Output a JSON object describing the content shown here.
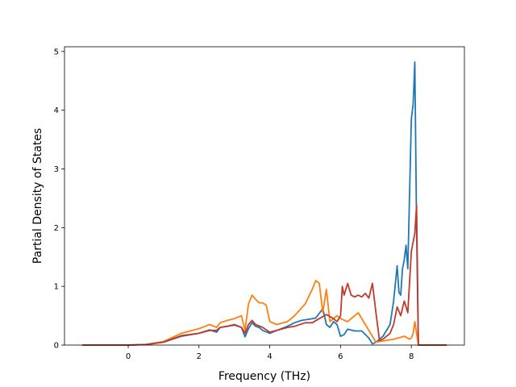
{
  "chart_data": {
    "type": "line",
    "title": "",
    "xlabel": "Frequency (THz)",
    "ylabel": "Partial Density of States",
    "xlim": [
      -1.8,
      9.5
    ],
    "ylim": [
      0,
      5.08
    ],
    "xticks": [
      0,
      2,
      4,
      6,
      8
    ],
    "yticks": [
      0,
      1,
      2,
      3,
      4,
      5
    ],
    "grid": false,
    "legend": "none",
    "series": [
      {
        "color": "#1f77b4",
        "x": [
          -1.3,
          0,
          0.5,
          1.0,
          1.5,
          2.0,
          2.3,
          2.5,
          2.6,
          2.8,
          3.0,
          3.2,
          3.3,
          3.4,
          3.5,
          3.6,
          3.7,
          3.8,
          4.0,
          4.2,
          4.5,
          4.7,
          4.9,
          5.1,
          5.3,
          5.5,
          5.6,
          5.7,
          5.8,
          5.9,
          6.0,
          6.1,
          6.2,
          6.4,
          6.6,
          6.8,
          6.9,
          7.0,
          7.2,
          7.4,
          7.5,
          7.6,
          7.65,
          7.7,
          7.75,
          7.8,
          7.85,
          7.9,
          8.0,
          8.05,
          8.1,
          8.15,
          8.2,
          8.3,
          9.0
        ],
        "values": [
          0,
          0,
          0.01,
          0.05,
          0.15,
          0.2,
          0.26,
          0.22,
          0.3,
          0.32,
          0.34,
          0.3,
          0.14,
          0.28,
          0.38,
          0.32,
          0.3,
          0.25,
          0.2,
          0.25,
          0.32,
          0.38,
          0.42,
          0.44,
          0.46,
          0.62,
          0.35,
          0.3,
          0.4,
          0.35,
          0.15,
          0.18,
          0.27,
          0.24,
          0.24,
          0.12,
          0.02,
          0.05,
          0.15,
          0.35,
          0.75,
          1.35,
          0.9,
          0.85,
          1.3,
          1.45,
          1.7,
          1.3,
          3.85,
          4.1,
          4.82,
          2.0,
          0,
          0,
          0
        ]
      },
      {
        "color": "#ff7f0e",
        "x": [
          -1.3,
          0,
          0.5,
          1.0,
          1.5,
          2.0,
          2.3,
          2.5,
          2.6,
          2.8,
          3.0,
          3.2,
          3.3,
          3.4,
          3.5,
          3.6,
          3.7,
          3.8,
          3.9,
          4.0,
          4.2,
          4.5,
          4.7,
          5.0,
          5.2,
          5.3,
          5.4,
          5.5,
          5.6,
          5.7,
          5.9,
          6.0,
          6.2,
          6.5,
          7.0,
          7.5,
          7.8,
          7.95,
          8.0,
          8.05,
          8.1,
          8.2,
          9.0
        ],
        "values": [
          0,
          0,
          0.01,
          0.06,
          0.2,
          0.28,
          0.35,
          0.3,
          0.38,
          0.42,
          0.45,
          0.5,
          0.25,
          0.7,
          0.85,
          0.78,
          0.72,
          0.72,
          0.68,
          0.4,
          0.35,
          0.4,
          0.5,
          0.7,
          0.95,
          1.1,
          1.05,
          0.55,
          0.95,
          0.4,
          0.5,
          0.45,
          0.4,
          0.55,
          0.05,
          0.1,
          0.15,
          0.1,
          0.12,
          0.2,
          0.4,
          0,
          0
        ]
      },
      {
        "color": "#c0392b",
        "x": [
          -1.3,
          0,
          0.5,
          1.0,
          1.5,
          2.0,
          2.3,
          2.5,
          2.6,
          2.8,
          3.0,
          3.2,
          3.3,
          3.4,
          3.5,
          3.6,
          3.8,
          4.0,
          4.2,
          4.5,
          4.7,
          5.0,
          5.2,
          5.4,
          5.6,
          5.8,
          5.9,
          6.0,
          6.05,
          6.1,
          6.2,
          6.3,
          6.4,
          6.5,
          6.6,
          6.7,
          6.8,
          6.9,
          7.0,
          7.1,
          7.2,
          7.4,
          7.5,
          7.55,
          7.6,
          7.7,
          7.8,
          7.9,
          8.0,
          8.1,
          8.15,
          8.2,
          9.0
        ],
        "values": [
          0,
          0,
          0.01,
          0.05,
          0.16,
          0.2,
          0.25,
          0.25,
          0.3,
          0.32,
          0.35,
          0.3,
          0.2,
          0.35,
          0.42,
          0.35,
          0.3,
          0.22,
          0.25,
          0.3,
          0.32,
          0.38,
          0.38,
          0.45,
          0.52,
          0.45,
          0.4,
          0.5,
          1.0,
          0.85,
          1.05,
          0.85,
          0.82,
          0.85,
          0.82,
          0.88,
          0.8,
          1.05,
          0.55,
          0.08,
          0.1,
          0.2,
          0.35,
          0.5,
          0.65,
          0.5,
          0.75,
          0.55,
          1.6,
          1.9,
          2.38,
          0,
          0
        ]
      }
    ]
  }
}
